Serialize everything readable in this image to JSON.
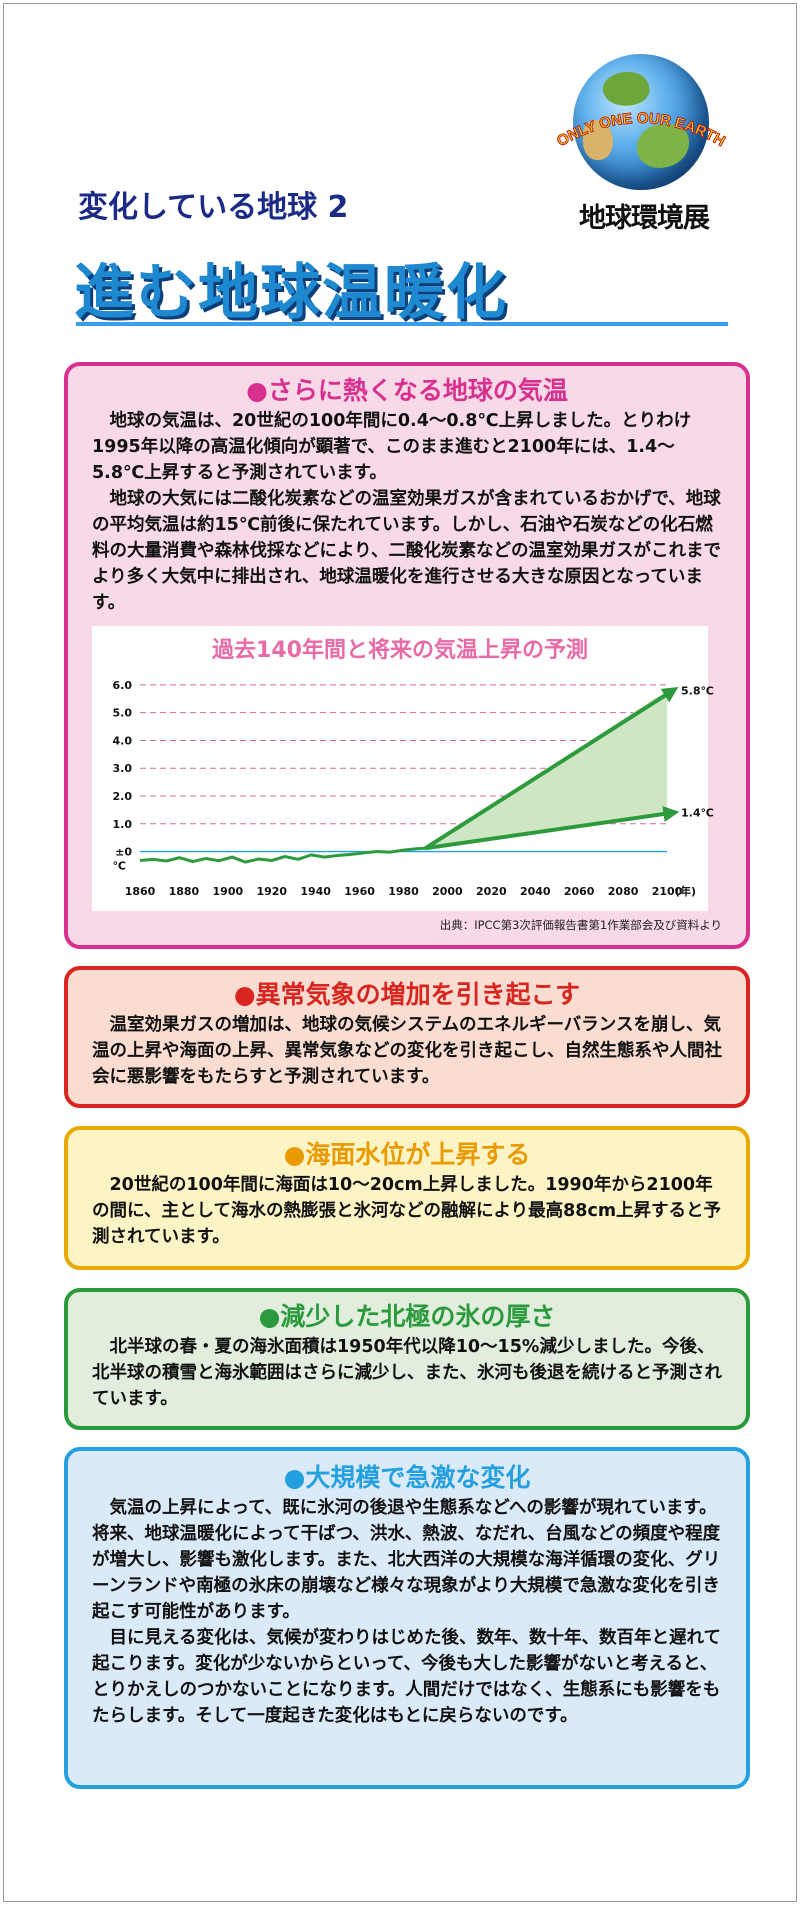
{
  "logo": {
    "arc_text": "ONLY ONE OUR EARTH",
    "caption": "地球環境展"
  },
  "header": {
    "subtitle": "変化している地球 2",
    "title": "進む地球温暖化"
  },
  "sections": [
    {
      "heading": "●さらに熱くなる地球の気温",
      "paragraphs": [
        "地球の気温は、20世紀の100年間に0.4〜0.8℃上昇しました。とりわけ1995年以降の高温化傾向が顕著で、このまま進むと2100年には、1.4〜5.8℃上昇すると予測されています。",
        "地球の大気には二酸化炭素などの温室効果ガスが含まれているおかげで、地球の平均気温は約15℃前後に保たれています。しかし、石油や石炭などの化石燃料の大量消費や森林伐採などにより、二酸化炭素などの温室効果ガスがこれまでより多く大気中に排出され、地球温暖化を進行させる大きな原因となっています。"
      ],
      "source": "出典：IPCC第3次評価報告書第1作業部会及び資料より"
    },
    {
      "heading": "●異常気象の増加を引き起こす",
      "paragraphs": [
        "温室効果ガスの増加は、地球の気候システムのエネルギーバランスを崩し、気温の上昇や海面の上昇、異常気象などの変化を引き起こし、自然生態系や人間社会に悪影響をもたらすと予測されています。"
      ]
    },
    {
      "heading": "●海面水位が上昇する",
      "paragraphs": [
        "20世紀の100年間に海面は10〜20cm上昇しました。1990年から2100年の間に、主として海水の熱膨張と氷河などの融解により最高88cm上昇すると予測されています。"
      ]
    },
    {
      "heading": "●減少した北極の氷の厚さ",
      "paragraphs": [
        "北半球の春・夏の海氷面積は1950年代以降10〜15%減少しました。今後、北半球の積雪と海氷範囲はさらに減少し、また、氷河も後退を続けると予測されています。"
      ]
    },
    {
      "heading": "●大規模で急激な変化",
      "paragraphs": [
        "気温の上昇によって、既に氷河の後退や生態系などへの影響が現れています。将来、地球温暖化によって干ばつ、洪水、熱波、なだれ、台風などの頻度や程度が増大し、影響も激化します。また、北大西洋の大規模な海洋循環の変化、グリーンランドや南極の氷床の崩壊など様々な現象がより大規模で急激な変化を引き起こす可能性があります。",
        "目に見える変化は、気候が変わりはじめた後、数年、数十年、数百年と遅れて起こります。変化が少ないからといって、今後も大した影響がないと考えると、とりかえしのつかないことになります。人間だけではなく、生態系にも影響をもたらします。そして一度起きた変化はもとに戻らないのです。"
      ]
    }
  ],
  "colors": {
    "pink": "#d8308f",
    "red": "#d8251f",
    "yellow": "#e99a00",
    "green": "#2b9a3d",
    "blue": "#24a0e0",
    "series": "#2e9a3e",
    "band": "#cfe6c4",
    "grid": "#d86a9e"
  },
  "chart_data": {
    "type": "line",
    "title": "過去140年間と将来の気温上昇の予測",
    "xlabel": "(年)",
    "ylabel": "℃",
    "x_ticks": [
      1860,
      1880,
      1900,
      1920,
      1940,
      1960,
      1980,
      2000,
      2020,
      2040,
      2060,
      2080,
      2100
    ],
    "y_tick_labels": [
      "±0",
      "1.0",
      "2.0",
      "3.0",
      "4.0",
      "5.0",
      "6.0"
    ],
    "y_ticks": [
      0,
      1,
      2,
      3,
      4,
      5,
      6
    ],
    "xlim": [
      1860,
      2100
    ],
    "ylim": [
      -0.7,
      6.5
    ],
    "grid": true,
    "baseline": 0,
    "series": [
      {
        "x": [
          1860,
          1866,
          1872,
          1878,
          1884,
          1890,
          1896,
          1902,
          1908,
          1914,
          1920,
          1926,
          1932,
          1938,
          1944,
          1950,
          1956,
          1962,
          1968,
          1974,
          1980,
          1986,
          1990
        ],
        "values": [
          -0.32,
          -0.28,
          -0.34,
          -0.22,
          -0.36,
          -0.25,
          -0.33,
          -0.2,
          -0.38,
          -0.27,
          -0.32,
          -0.18,
          -0.28,
          -0.12,
          -0.2,
          -0.14,
          -0.1,
          -0.05,
          0,
          -0.02,
          0.05,
          0.1,
          0.12
        ]
      },
      {
        "x": [
          1990,
          2100
        ],
        "values": [
          0.12,
          5.8
        ]
      },
      {
        "x": [
          1990,
          2100
        ],
        "values": [
          0.12,
          1.4
        ]
      }
    ],
    "labels": [
      "5.8℃",
      "1.4℃"
    ]
  }
}
